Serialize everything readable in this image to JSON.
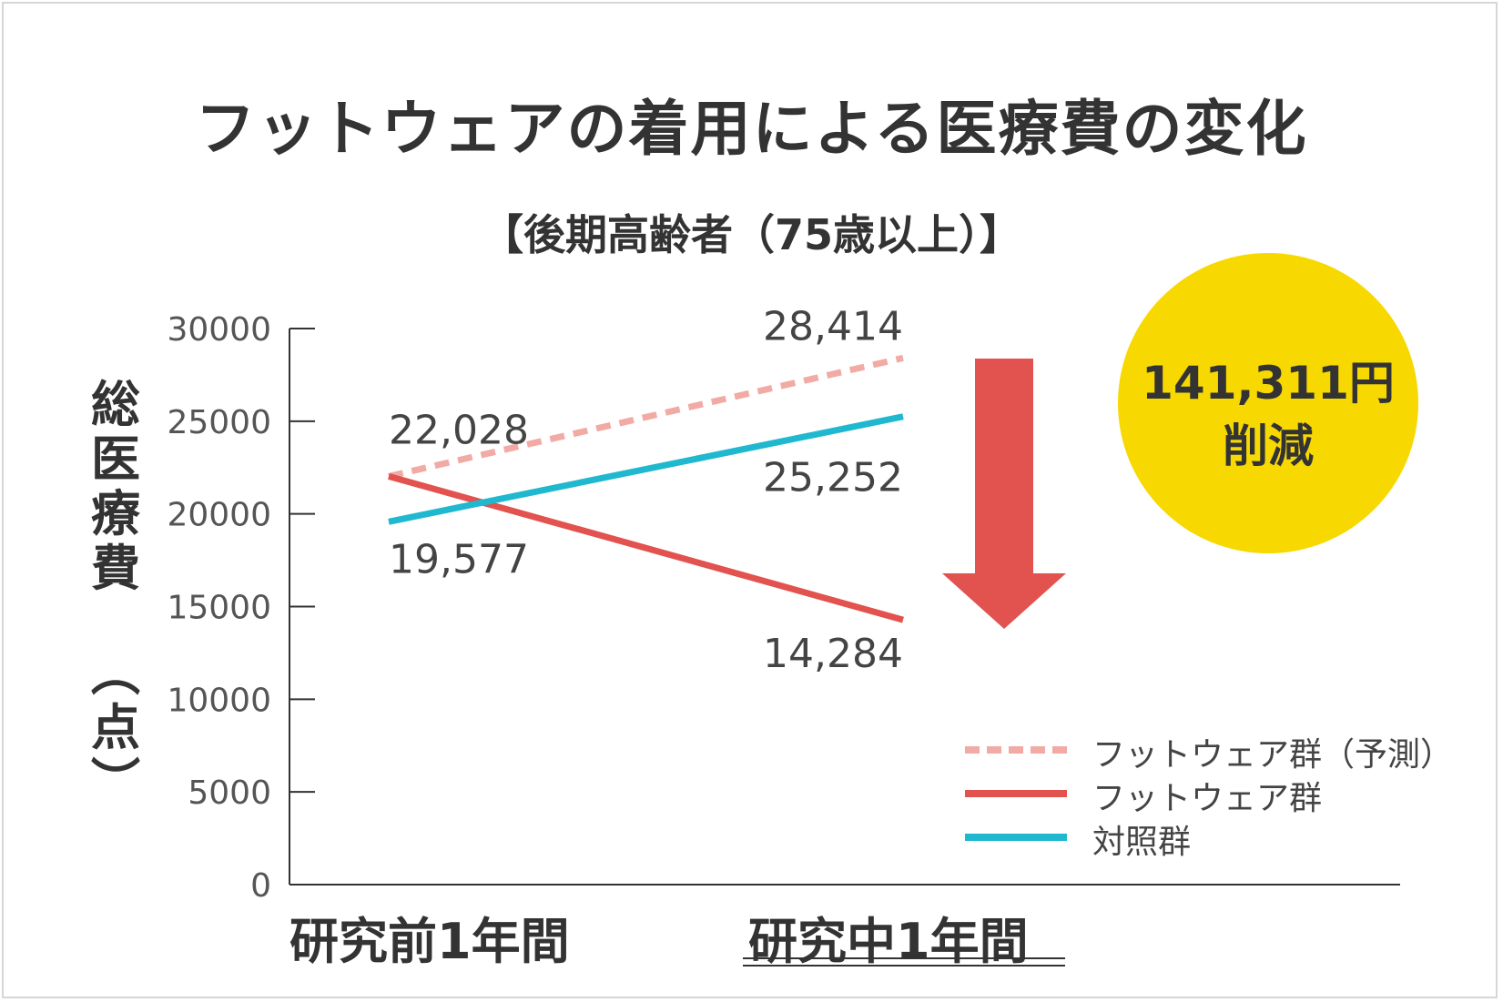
{
  "title": "フットウェアの着用による医療費の変化",
  "subtitle": "【後期高齢者（75歳以上）】",
  "colors": {
    "footwear_predicted": "#f1aaa4",
    "footwear": "#e2524e",
    "control": "#1fb8cf",
    "badge": "#f7d800",
    "arrow": "#e2524e"
  },
  "badge": {
    "amount": "141,311円",
    "label": "削減"
  },
  "chart_data": {
    "type": "line",
    "ylabel_main": "総医療費",
    "ylabel_unit": "（点）",
    "ylim": [
      0,
      30000
    ],
    "yticks": [
      "30000",
      "25000",
      "20000",
      "15000",
      "10000",
      "5000",
      "0"
    ],
    "ytick_values": [
      30000,
      25000,
      20000,
      15000,
      10000,
      5000,
      0
    ],
    "categories": [
      "研究前1年間",
      "研究中1年間"
    ],
    "series": [
      {
        "name": "フットウェア群（予測）",
        "values": [
          22028,
          28414
        ],
        "style": "dashed",
        "color": "#f1aaa4"
      },
      {
        "name": "フットウェア群",
        "values": [
          22028,
          14284
        ],
        "style": "solid",
        "color": "#e2524e"
      },
      {
        "name": "対照群",
        "values": [
          19577,
          25252
        ],
        "style": "solid",
        "color": "#1fb8cf"
      }
    ],
    "data_labels": [
      "22,028",
      "19,577",
      "28,414",
      "25,252",
      "14,284"
    ],
    "legend_position": "bottom-right"
  }
}
